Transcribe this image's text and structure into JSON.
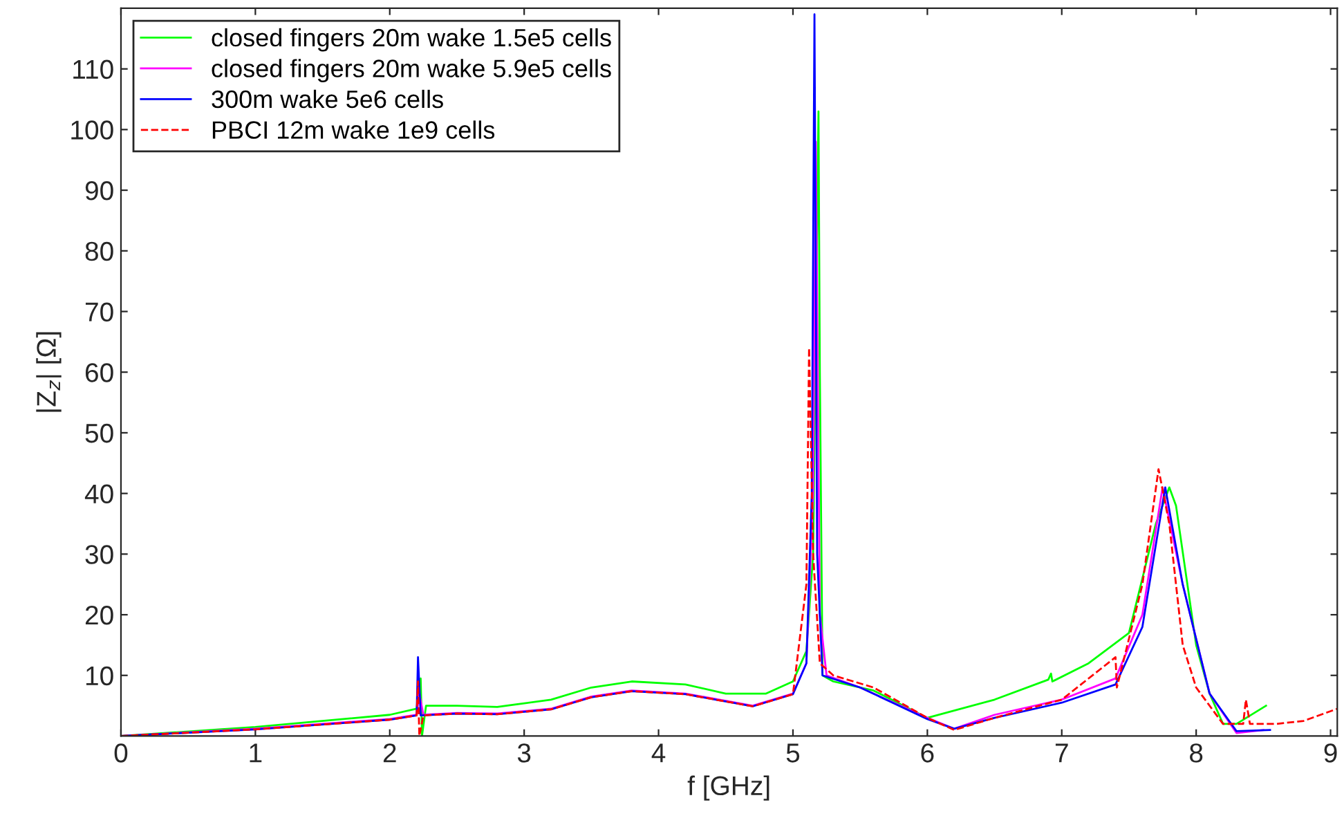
{
  "chart_data": {
    "type": "line",
    "xlabel": "f [GHz]",
    "ylabel": "|Z$_{z}$| [Ω]",
    "xlim": [
      0,
      9.05
    ],
    "ylim": [
      0,
      120
    ],
    "xticks": [
      0,
      1,
      2,
      3,
      4,
      5,
      6,
      7,
      8,
      9
    ],
    "yticks": [
      10,
      20,
      30,
      40,
      50,
      60,
      70,
      80,
      90,
      100,
      110
    ],
    "legend": "top left",
    "grid": false,
    "series": [
      {
        "name": "closed fingers 20m wake 1.5e5 cells",
        "color": "#00ff00",
        "line_style": "solid",
        "x": [
          0,
          1,
          2,
          2.2,
          2.23,
          2.24,
          2.27,
          2.5,
          2.8,
          3.2,
          3.5,
          3.8,
          4.2,
          4.5,
          4.8,
          5.0,
          5.1,
          5.15,
          5.19,
          5.2,
          5.22,
          5.3,
          5.6,
          6.0,
          6.5,
          6.9,
          6.92,
          6.93,
          7.2,
          7.5,
          7.7,
          7.8,
          7.85,
          8.0,
          8.1,
          8.2,
          8.3,
          8.52
        ],
        "values": [
          0,
          1.5,
          3.5,
          4.5,
          9.5,
          0,
          5,
          5,
          4.8,
          6,
          8,
          9,
          8.5,
          7,
          7,
          9,
          14,
          30,
          103,
          60,
          10,
          9,
          7.5,
          3,
          6,
          9.3,
          10.3,
          9,
          12,
          17,
          35,
          41,
          38,
          15,
          7,
          2,
          2,
          5
        ]
      },
      {
        "name": "closed fingers 20m wake 5.9e5 cells",
        "color": "#ff00ff",
        "line_style": "solid",
        "x": [
          0,
          1,
          2,
          2.2,
          2.22,
          2.25,
          2.5,
          2.8,
          3.2,
          3.5,
          3.8,
          4.2,
          4.7,
          5.0,
          5.1,
          5.15,
          5.17,
          5.2,
          5.25,
          5.5,
          6.0,
          6.2,
          6.5,
          7.0,
          7.4,
          7.6,
          7.75,
          7.9,
          8.1,
          8.3,
          8.5
        ],
        "values": [
          0,
          1.2,
          2.8,
          3.5,
          7,
          3.5,
          3.8,
          3.7,
          4.5,
          6.5,
          7.5,
          7,
          5,
          7,
          12,
          40,
          98,
          20,
          10,
          8,
          3,
          1.2,
          3.5,
          6,
          9.5,
          20,
          41,
          25,
          7,
          0.5,
          1
        ]
      },
      {
        "name": "300m wake 5e6 cells",
        "color": "#0000ff",
        "line_style": "solid",
        "x": [
          0,
          1,
          2,
          2.2,
          2.21,
          2.23,
          2.5,
          2.8,
          3.2,
          3.5,
          3.8,
          4.2,
          4.7,
          5.0,
          5.1,
          5.14,
          5.16,
          5.18,
          5.22,
          5.5,
          6.0,
          6.2,
          6.5,
          7.0,
          7.4,
          7.6,
          7.77,
          7.9,
          8.1,
          8.3,
          8.55
        ],
        "values": [
          0,
          1.1,
          2.7,
          3.4,
          13,
          3.4,
          3.7,
          3.6,
          4.4,
          6.4,
          7.4,
          6.9,
          4.9,
          6.9,
          12,
          40,
          119,
          30,
          10,
          8,
          2.8,
          1.2,
          3,
          5.5,
          8.5,
          18,
          41,
          25,
          7,
          0.8,
          1
        ]
      },
      {
        "name": "PBCI 12m wake 1e9 cells",
        "color": "#ff0000",
        "line_style": "dashed",
        "x": [
          0,
          1,
          2,
          2.2,
          2.21,
          2.22,
          2.25,
          2.5,
          2.8,
          3.2,
          3.5,
          3.8,
          4.2,
          4.7,
          5.0,
          5.1,
          5.12,
          5.15,
          5.2,
          5.3,
          5.6,
          6.0,
          6.2,
          6.5,
          7.0,
          7.4,
          7.41,
          7.6,
          7.72,
          7.8,
          7.9,
          8.0,
          8.2,
          8.35,
          8.37,
          8.4,
          8.6,
          8.8,
          9.05
        ],
        "values": [
          0,
          1.1,
          2.7,
          3.4,
          9,
          0,
          3.4,
          3.7,
          3.6,
          4.4,
          6.4,
          7.4,
          6.9,
          4.9,
          6.9,
          25,
          64,
          30,
          12,
          10,
          8,
          3,
          1,
          3,
          6,
          13,
          8,
          25,
          44,
          35,
          15,
          8,
          2,
          2,
          6,
          2,
          2,
          2.5,
          4.5
        ]
      }
    ]
  }
}
